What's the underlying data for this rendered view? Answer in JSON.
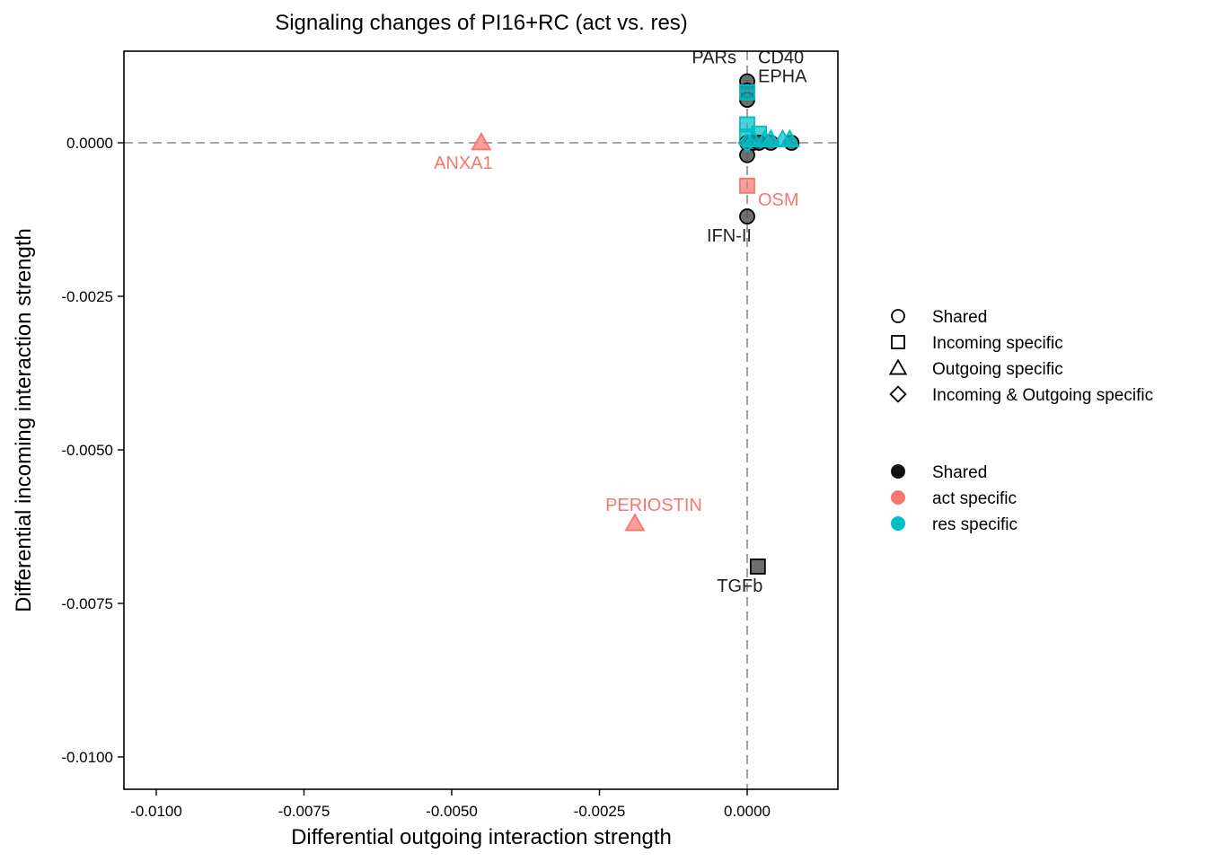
{
  "chart_data": {
    "type": "scatter",
    "title": "Signaling changes of PI16+RC (act vs. res)",
    "xlabel": "Differential outgoing interaction strength",
    "ylabel": "Differential incoming interaction strength",
    "xlim": [
      -0.0105,
      0.0015
    ],
    "ylim": [
      -0.0105,
      0.0015
    ],
    "x_ticks": [
      -0.01,
      -0.0075,
      -0.005,
      -0.0025,
      0.0
    ],
    "x_tick_labels": [
      "-0.0100",
      "-0.0075",
      "-0.0050",
      "-0.0025",
      "0.0000"
    ],
    "y_ticks": [
      0.0,
      -0.0025,
      -0.005,
      -0.0075,
      -0.01
    ],
    "y_tick_labels": [
      "0.0000",
      "-0.0025",
      "-0.0050",
      "-0.0075",
      "-0.0100"
    ],
    "reference_lines": {
      "x": 0.0,
      "y": 0.0,
      "style": "dashed"
    },
    "grid": false,
    "legend_position": "right",
    "colors": {
      "Shared": "#555555",
      "act specific": "#F8766D",
      "res specific": "#00BFC4"
    },
    "points": [
      {
        "x": 0.0,
        "y": 0.001,
        "shape": "circle",
        "group": "Shared"
      },
      {
        "x": 0.0,
        "y": 0.00085,
        "shape": "circle",
        "group": "Shared"
      },
      {
        "x": 0.0,
        "y": 0.0007,
        "shape": "circle",
        "group": "Shared"
      },
      {
        "x": 0.0,
        "y": 0.00082,
        "shape": "square",
        "group": "res specific"
      },
      {
        "x": 0.0,
        "y": 0.0003,
        "shape": "square",
        "group": "res specific"
      },
      {
        "x": 0.0002,
        "y": 0.00015,
        "shape": "square",
        "group": "res specific"
      },
      {
        "x": 0.0,
        "y": 0.0001,
        "shape": "square",
        "group": "res specific"
      },
      {
        "x": 0.0,
        "y": 0.0,
        "shape": "circle",
        "group": "Shared"
      },
      {
        "x": 0.0,
        "y": -0.0002,
        "shape": "circle",
        "group": "Shared"
      },
      {
        "x": 0.0001,
        "y": 0.0,
        "shape": "circle",
        "group": "Shared"
      },
      {
        "x": 0.0002,
        "y": 0.0,
        "shape": "circle",
        "group": "Shared"
      },
      {
        "x": 0.0004,
        "y": 0.0,
        "shape": "circle",
        "group": "Shared"
      },
      {
        "x": 0.00075,
        "y": 0.0,
        "shape": "circle",
        "group": "Shared"
      },
      {
        "x": 0.0001,
        "y": 5e-05,
        "shape": "triangle",
        "group": "res specific"
      },
      {
        "x": 0.0003,
        "y": 5e-05,
        "shape": "triangle",
        "group": "res specific"
      },
      {
        "x": 0.0004,
        "y": 5e-05,
        "shape": "triangle",
        "group": "res specific"
      },
      {
        "x": 0.0006,
        "y": 5e-05,
        "shape": "triangle",
        "group": "res specific"
      },
      {
        "x": 0.00072,
        "y": 5e-05,
        "shape": "triangle",
        "group": "res specific"
      },
      {
        "x": 0.0,
        "y": 0.0,
        "shape": "diamond",
        "group": "res specific"
      },
      {
        "x": -0.0045,
        "y": 0.0,
        "shape": "triangle",
        "group": "act specific"
      },
      {
        "x": -0.0019,
        "y": -0.0062,
        "shape": "triangle",
        "group": "act specific"
      },
      {
        "x": 0.0,
        "y": -0.0007,
        "shape": "square",
        "group": "act specific"
      },
      {
        "x": 0.0,
        "y": -0.0012,
        "shape": "circle",
        "group": "Shared"
      },
      {
        "x": 0.00018,
        "y": -0.0069,
        "shape": "square",
        "group": "Shared"
      }
    ],
    "labels": [
      {
        "text": "PARs",
        "x": 0.0,
        "y": 0.001,
        "group": "Shared"
      },
      {
        "text": "CD40",
        "x": 0.0,
        "y": 0.001,
        "group": "Shared"
      },
      {
        "text": "EPHA",
        "x": 0.0,
        "y": 0.00055,
        "group": "Shared"
      },
      {
        "text": "ANXA1",
        "x": -0.0045,
        "y": 0.0,
        "group": "act specific"
      },
      {
        "text": "OSM",
        "x": 0.0,
        "y": -0.0007,
        "group": "act specific"
      },
      {
        "text": "IFN-II",
        "x": 0.0,
        "y": -0.0012,
        "group": "Shared"
      },
      {
        "text": "PERIOSTIN",
        "x": -0.0019,
        "y": -0.0062,
        "group": "act specific"
      },
      {
        "text": "TGFb",
        "x": 0.00018,
        "y": -0.0069,
        "group": "Shared"
      }
    ],
    "legend_shapes": [
      {
        "label": "Shared",
        "shape": "circle"
      },
      {
        "label": "Incoming specific",
        "shape": "square"
      },
      {
        "label": "Outgoing specific",
        "shape": "triangle"
      },
      {
        "label": "Incoming & Outgoing specific",
        "shape": "diamond"
      }
    ],
    "legend_colors": [
      {
        "label": "Shared",
        "color": "#111111"
      },
      {
        "label": "act specific",
        "color": "#F8766D"
      },
      {
        "label": "res specific",
        "color": "#00BFC4"
      }
    ]
  }
}
